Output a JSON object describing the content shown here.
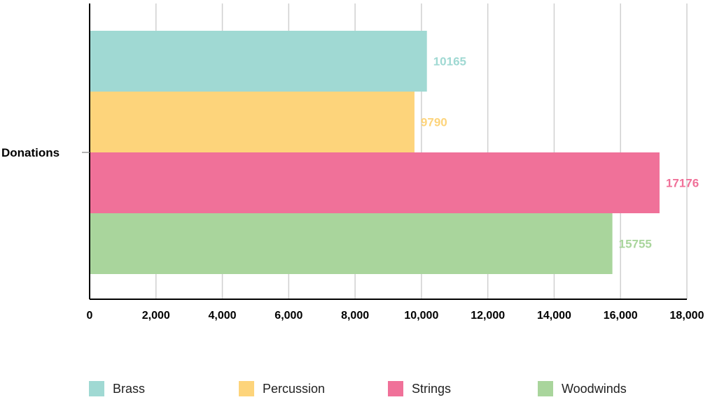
{
  "chart_data": {
    "type": "bar",
    "orientation": "horizontal",
    "categories": [
      "Donations"
    ],
    "series": [
      {
        "name": "Brass",
        "values": [
          10165
        ],
        "color": "#a0d9d3"
      },
      {
        "name": "Percussion",
        "values": [
          9790
        ],
        "color": "#fdd47b"
      },
      {
        "name": "Strings",
        "values": [
          17176
        ],
        "color": "#f07199"
      },
      {
        "name": "Woodwinds",
        "values": [
          15755
        ],
        "color": "#a9d59c"
      }
    ],
    "xlim": [
      0,
      18000
    ],
    "x_ticks": [
      "0",
      "2,000",
      "4,000",
      "6,000",
      "8,000",
      "10,000",
      "12,000",
      "14,000",
      "16,000",
      "18,000"
    ],
    "data_labels": [
      "10165",
      "9790",
      "17176",
      "15755"
    ],
    "grid": true,
    "legend_position": "bottom"
  }
}
